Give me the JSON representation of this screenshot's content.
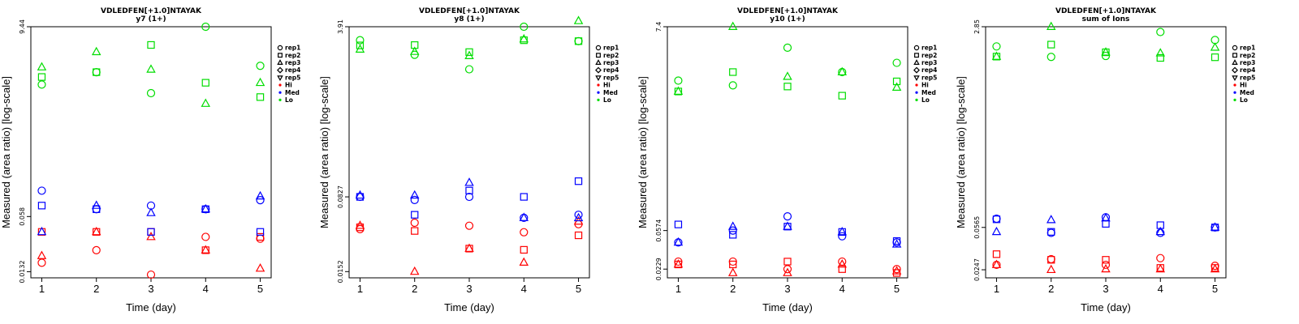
{
  "colors": {
    "Hi": "#ff0000",
    "Med": "#0000ff",
    "Lo": "#00dd00"
  },
  "legend": [
    {
      "label": "rep1",
      "symbol": "circle"
    },
    {
      "label": "rep2",
      "symbol": "square"
    },
    {
      "label": "rep3",
      "symbol": "triangle-up"
    },
    {
      "label": "rep4",
      "symbol": "diamond"
    },
    {
      "label": "rep5",
      "symbol": "triangle-down"
    },
    {
      "label": "Hi",
      "symbol": "dot",
      "color": "#ff0000"
    },
    {
      "label": "Med",
      "symbol": "dot",
      "color": "#0000ff"
    },
    {
      "label": "Lo",
      "symbol": "dot",
      "color": "#00dd00"
    }
  ],
  "chart_data": [
    {
      "type": "scatter",
      "title": "VDLEDFEN[+1.0]NTAYAK",
      "subtitle": "y7 (1+)",
      "xlabel": "Time (day)",
      "ylabel": "Measured (area ratio) [log-scale]",
      "log_y": true,
      "x_ticks": [
        1,
        2,
        3,
        4,
        5
      ],
      "xlim": [
        0.8,
        5.2
      ],
      "y_ticks": [
        0.0132,
        0.058,
        9.44
      ],
      "ylim": [
        0.0112,
        9.44
      ],
      "series": [
        {
          "group": "Hi",
          "rep": "rep1",
          "symbol": "circle",
          "x": [
            1,
            2,
            3,
            4,
            5
          ],
          "y": [
            0.0168,
            0.0235,
            0.0122,
            0.0336,
            0.032
          ]
        },
        {
          "group": "Hi",
          "rep": "rep2",
          "symbol": "square",
          "x": [
            1,
            2,
            3,
            4,
            5
          ],
          "y": [
            0.0384,
            0.0384,
            0.0384,
            0.0235,
            0.0336
          ]
        },
        {
          "group": "Hi",
          "rep": "rep3",
          "symbol": "triangle-up",
          "x": [
            1,
            2,
            3,
            4,
            5
          ],
          "y": [
            0.0202,
            0.0384,
            0.0336,
            0.0235,
            0.0144
          ]
        },
        {
          "group": "Med",
          "rep": "rep1",
          "symbol": "circle",
          "x": [
            1,
            2,
            3,
            4,
            5
          ],
          "y": [
            0.116,
            0.0706,
            0.0778,
            0.0706,
            0.09
          ]
        },
        {
          "group": "Med",
          "rep": "rep2",
          "symbol": "square",
          "x": [
            1,
            2,
            3,
            4,
            5
          ],
          "y": [
            0.0778,
            0.0706,
            0.0384,
            0.0706,
            0.0384
          ]
        },
        {
          "group": "Med",
          "rep": "rep3",
          "symbol": "triangle-up",
          "x": [
            1,
            2,
            3,
            4,
            5
          ],
          "y": [
            0.0384,
            0.0778,
            0.064,
            0.0706,
            0.1
          ]
        },
        {
          "group": "Lo",
          "rep": "rep1",
          "symbol": "circle",
          "x": [
            1,
            2,
            3,
            4,
            5
          ],
          "y": [
            2.0,
            2.79,
            1.59,
            9.44,
            3.31
          ]
        },
        {
          "group": "Lo",
          "rep": "rep2",
          "symbol": "square",
          "x": [
            1,
            2,
            3,
            4,
            5
          ],
          "y": [
            2.45,
            2.79,
            5.79,
            2.1,
            1.43
          ]
        },
        {
          "group": "Lo",
          "rep": "rep3",
          "symbol": "triangle-up",
          "x": [
            1,
            2,
            3,
            4,
            5
          ],
          "y": [
            3.19,
            4.8,
            3.0,
            1.2,
            2.1
          ]
        }
      ]
    },
    {
      "type": "scatter",
      "title": "VDLEDFEN[+1.0]NTAYAK",
      "subtitle": "y8 (1+)",
      "xlabel": "Time (day)",
      "ylabel": "Measured (area ratio) [log-scale]",
      "log_y": true,
      "x_ticks": [
        1,
        2,
        3,
        4,
        5
      ],
      "xlim": [
        0.8,
        5.2
      ],
      "y_ticks": [
        0.0152,
        0.0827,
        3.91
      ],
      "ylim": [
        0.0132,
        3.91
      ],
      "series": [
        {
          "group": "Hi",
          "rep": "rep1",
          "symbol": "circle",
          "x": [
            1,
            2,
            3,
            4,
            5
          ],
          "y": [
            0.0398,
            0.046,
            0.043,
            0.0371,
            0.0445
          ]
        },
        {
          "group": "Hi",
          "rep": "rep2",
          "symbol": "square",
          "x": [
            1,
            2,
            3,
            4,
            5
          ],
          "y": [
            0.0415,
            0.0382,
            0.0256,
            0.0249,
            0.0346
          ]
        },
        {
          "group": "Hi",
          "rep": "rep3",
          "symbol": "triangle-up",
          "x": [
            1,
            2,
            3,
            4,
            5
          ],
          "y": [
            0.0431,
            0.0152,
            0.0256,
            0.0187,
            0.0474
          ]
        },
        {
          "group": "Med",
          "rep": "rep1",
          "symbol": "circle",
          "x": [
            1,
            2,
            3,
            4,
            5
          ],
          "y": [
            0.0827,
            0.0771,
            0.0827,
            0.0515,
            0.0551
          ]
        },
        {
          "group": "Med",
          "rep": "rep2",
          "symbol": "square",
          "x": [
            1,
            2,
            3,
            4,
            5
          ],
          "y": [
            0.0827,
            0.0551,
            0.0954,
            0.0827,
            0.118
          ]
        },
        {
          "group": "Med",
          "rep": "rep3",
          "symbol": "triangle-up",
          "x": [
            1,
            2,
            3,
            4,
            5
          ],
          "y": [
            0.0856,
            0.0856,
            0.114,
            0.0515,
            0.0512
          ]
        },
        {
          "group": "Lo",
          "rep": "rep1",
          "symbol": "circle",
          "x": [
            1,
            2,
            3,
            4,
            5
          ],
          "y": [
            2.88,
            2.07,
            1.49,
            3.91,
            2.82
          ]
        },
        {
          "group": "Lo",
          "rep": "rep2",
          "symbol": "square",
          "x": [
            1,
            2,
            3,
            4,
            5
          ],
          "y": [
            2.56,
            2.58,
            2.2,
            2.88,
            2.82
          ]
        },
        {
          "group": "Lo",
          "rep": "rep3",
          "symbol": "triangle-up",
          "x": [
            1,
            2,
            3,
            4,
            5
          ],
          "y": [
            2.34,
            2.22,
            2.02,
            2.95,
            4.46
          ]
        }
      ]
    },
    {
      "type": "scatter",
      "title": "VDLEDFEN[+1.0]NTAYAK",
      "subtitle": "y10 (1+)",
      "xlabel": "Time (day)",
      "ylabel": "Measured (area ratio) [log-scale]",
      "log_y": true,
      "x_ticks": [
        1,
        2,
        3,
        4,
        5
      ],
      "xlim": [
        0.8,
        5.2
      ],
      "y_ticks": [
        0.0229,
        0.0574,
        7.4
      ],
      "ylim": [
        0.0186,
        7.4
      ],
      "series": [
        {
          "group": "Hi",
          "rep": "rep1",
          "symbol": "circle",
          "x": [
            1,
            2,
            3,
            4,
            5
          ],
          "y": [
            0.0274,
            0.0274,
            0.0229,
            0.0274,
            0.0229
          ]
        },
        {
          "group": "Hi",
          "rep": "rep2",
          "symbol": "square",
          "x": [
            1,
            2,
            3,
            4,
            5
          ],
          "y": [
            0.0256,
            0.0256,
            0.0274,
            0.0229,
            0.0209
          ]
        },
        {
          "group": "Hi",
          "rep": "rep3",
          "symbol": "triangle-up",
          "x": [
            1,
            2,
            3,
            4,
            5
          ],
          "y": [
            0.0256,
            0.0209,
            0.0209,
            0.0256,
            0.0218
          ]
        },
        {
          "group": "Med",
          "rep": "rep1",
          "symbol": "circle",
          "x": [
            1,
            2,
            3,
            4,
            5
          ],
          "y": [
            0.0433,
            0.0574,
            0.0805,
            0.0501,
            0.0433
          ]
        },
        {
          "group": "Med",
          "rep": "rep2",
          "symbol": "square",
          "x": [
            1,
            2,
            3,
            4,
            5
          ],
          "y": [
            0.0664,
            0.0519,
            0.0631,
            0.0555,
            0.0447
          ]
        },
        {
          "group": "Med",
          "rep": "rep3",
          "symbol": "triangle-up",
          "x": [
            1,
            2,
            3,
            4,
            5
          ],
          "y": [
            0.0433,
            0.0631,
            0.0631,
            0.0555,
            0.0413
          ]
        },
        {
          "group": "Lo",
          "rep": "rep1",
          "symbol": "circle",
          "x": [
            1,
            2,
            3,
            4,
            5
          ],
          "y": [
            2.05,
            1.83,
            4.49,
            2.51,
            3.13
          ]
        },
        {
          "group": "Lo",
          "rep": "rep2",
          "symbol": "square",
          "x": [
            1,
            2,
            3,
            4,
            5
          ],
          "y": [
            1.58,
            2.51,
            1.78,
            1.43,
            2.01
          ]
        },
        {
          "group": "Lo",
          "rep": "rep3",
          "symbol": "triangle-up",
          "x": [
            1,
            2,
            3,
            4,
            5
          ],
          "y": [
            1.58,
            7.4,
            2.25,
            2.51,
            1.74
          ]
        }
      ]
    },
    {
      "type": "scatter",
      "title": "VDLEDFEN[+1.0]NTAYAK",
      "subtitle": "sum of Ions",
      "xlabel": "Time (day)",
      "ylabel": "Measured (area ratio) [log-scale]",
      "log_y": true,
      "x_ticks": [
        1,
        2,
        3,
        4,
        5
      ],
      "xlim": [
        0.8,
        5.2
      ],
      "y_ticks": [
        0.0247,
        0.0565,
        2.85
      ],
      "ylim": [
        0.0211,
        2.85
      ],
      "series": [
        {
          "group": "Hi",
          "rep": "rep1",
          "symbol": "circle",
          "x": [
            1,
            2,
            3,
            4,
            5
          ],
          "y": [
            0.0272,
            0.0304,
            0.0272,
            0.031,
            0.0267
          ]
        },
        {
          "group": "Hi",
          "rep": "rep2",
          "symbol": "square",
          "x": [
            1,
            2,
            3,
            4,
            5
          ],
          "y": [
            0.0335,
            0.03,
            0.03,
            0.0256,
            0.0256
          ]
        },
        {
          "group": "Hi",
          "rep": "rep3",
          "symbol": "triangle-up",
          "x": [
            1,
            2,
            3,
            4,
            5
          ],
          "y": [
            0.0272,
            0.0247,
            0.025,
            0.025,
            0.025
          ]
        },
        {
          "group": "Med",
          "rep": "rep1",
          "symbol": "circle",
          "x": [
            1,
            2,
            3,
            4,
            5
          ],
          "y": [
            0.067,
            0.0508,
            0.0689,
            0.0508,
            0.0565
          ]
        },
        {
          "group": "Med",
          "rep": "rep2",
          "symbol": "square",
          "x": [
            1,
            2,
            3,
            4,
            5
          ],
          "y": [
            0.0662,
            0.0518,
            0.0606,
            0.059,
            0.0565
          ]
        },
        {
          "group": "Med",
          "rep": "rep3",
          "symbol": "triangle-up",
          "x": [
            1,
            2,
            3,
            4,
            5
          ],
          "y": [
            0.0518,
            0.0654,
            0.0676,
            0.0518,
            0.0565
          ]
        },
        {
          "group": "Lo",
          "rep": "rep1",
          "symbol": "circle",
          "x": [
            1,
            2,
            3,
            4,
            5
          ],
          "y": [
            1.94,
            1.58,
            1.61,
            2.57,
            2.2
          ]
        },
        {
          "group": "Lo",
          "rep": "rep2",
          "symbol": "square",
          "x": [
            1,
            2,
            3,
            4,
            5
          ],
          "y": [
            1.59,
            2.01,
            1.73,
            1.55,
            1.57
          ]
        },
        {
          "group": "Lo",
          "rep": "rep3",
          "symbol": "triangle-up",
          "x": [
            1,
            2,
            3,
            4,
            5
          ],
          "y": [
            1.59,
            2.85,
            1.73,
            1.7,
            1.9
          ]
        }
      ]
    }
  ]
}
